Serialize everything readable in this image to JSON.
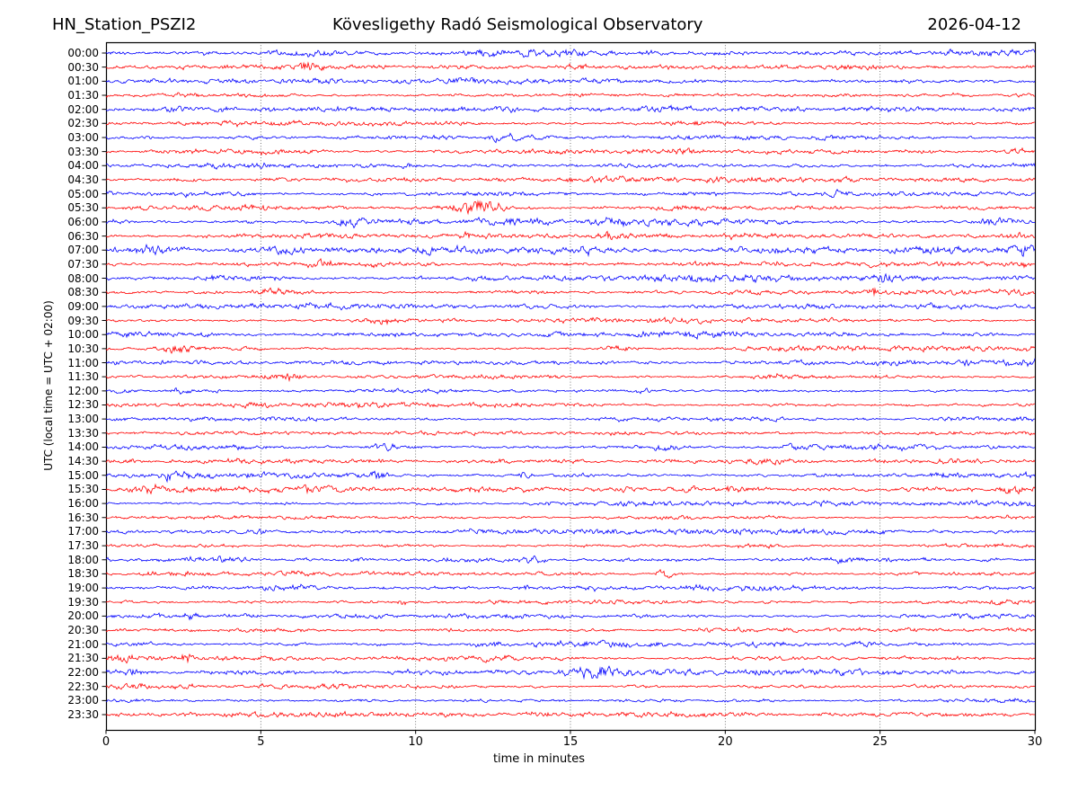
{
  "chart_data": {
    "type": "line",
    "station": "HN_Station_PSZI2",
    "title": "Kövesligethy Radó Seismological Observatory",
    "date": "2026-04-12",
    "xlabel": "time in minutes",
    "ylabel": "UTC (local time = UTC + 02:00)",
    "xlim": [
      0,
      30
    ],
    "x_ticks": [
      0,
      5,
      10,
      15,
      20,
      25,
      30
    ],
    "row_duration_minutes": 30,
    "grid": {
      "vertical_minutes": [
        5,
        10,
        15,
        20,
        25
      ],
      "style": "dotted",
      "color": "#555555"
    },
    "colors": {
      "blue": "#0000ff",
      "red": "#ff0000",
      "frame": "#000000"
    },
    "legend": "none",
    "rows": [
      {
        "label": "00:00",
        "color": "blue",
        "amp": 1.2,
        "events": []
      },
      {
        "label": "00:30",
        "color": "red",
        "amp": 1.05,
        "events": [
          {
            "t": 6.6,
            "w": 0.25,
            "amp": 2.2
          }
        ]
      },
      {
        "label": "01:00",
        "color": "blue",
        "amp": 1.0,
        "events": []
      },
      {
        "label": "01:30",
        "color": "red",
        "amp": 1.0,
        "events": []
      },
      {
        "label": "02:00",
        "color": "blue",
        "amp": 1.0,
        "events": [
          {
            "t": 3.8,
            "w": 0.2,
            "amp": 1.6
          }
        ]
      },
      {
        "label": "02:30",
        "color": "red",
        "amp": 0.95,
        "events": []
      },
      {
        "label": "03:00",
        "color": "blue",
        "amp": 0.95,
        "events": [
          {
            "t": 12.8,
            "w": 0.25,
            "amp": 2.2
          }
        ]
      },
      {
        "label": "03:30",
        "color": "red",
        "amp": 1.0,
        "events": [
          {
            "t": 29.3,
            "w": 0.4,
            "amp": 1.6
          }
        ]
      },
      {
        "label": "04:00",
        "color": "blue",
        "amp": 0.95,
        "events": [
          {
            "t": 9.8,
            "w": 0.15,
            "amp": 2.0
          }
        ]
      },
      {
        "label": "04:30",
        "color": "red",
        "amp": 0.95,
        "events": []
      },
      {
        "label": "05:00",
        "color": "blue",
        "amp": 1.0,
        "events": [
          {
            "t": 23.6,
            "w": 0.3,
            "amp": 2.1
          }
        ]
      },
      {
        "label": "05:30",
        "color": "red",
        "amp": 1.0,
        "events": [
          {
            "t": 12.0,
            "w": 0.45,
            "amp": 7.3
          }
        ]
      },
      {
        "label": "06:00",
        "color": "blue",
        "amp": 1.2,
        "events": [
          {
            "t": 7.9,
            "w": 0.35,
            "amp": 2.8
          },
          {
            "t": 12.6,
            "w": 0.8,
            "amp": 1.8
          },
          {
            "t": 28.8,
            "w": 0.5,
            "amp": 2.0
          }
        ]
      },
      {
        "label": "06:30",
        "color": "red",
        "amp": 1.05,
        "events": [
          {
            "t": 11.6,
            "w": 0.2,
            "amp": 2.5
          },
          {
            "t": 16.2,
            "w": 0.2,
            "amp": 2.1
          }
        ]
      },
      {
        "label": "07:00",
        "color": "blue",
        "amp": 1.15,
        "events": [
          {
            "t": 1.5,
            "w": 0.35,
            "amp": 3.1
          },
          {
            "t": 5.8,
            "w": 0.4,
            "amp": 2.1
          },
          {
            "t": 15.6,
            "w": 0.25,
            "amp": 2.1
          },
          {
            "t": 29.7,
            "w": 0.2,
            "amp": 2.4
          }
        ]
      },
      {
        "label": "07:30",
        "color": "red",
        "amp": 1.05,
        "events": [
          {
            "t": 7.0,
            "w": 0.25,
            "amp": 2.8
          },
          {
            "t": 29.4,
            "w": 0.3,
            "amp": 2.4
          }
        ]
      },
      {
        "label": "08:00",
        "color": "blue",
        "amp": 1.05,
        "events": [
          {
            "t": 3.5,
            "w": 0.2,
            "amp": 3.4
          },
          {
            "t": 25.1,
            "w": 0.25,
            "amp": 2.4
          }
        ]
      },
      {
        "label": "08:30",
        "color": "red",
        "amp": 1.05,
        "events": [
          {
            "t": 5.2,
            "w": 0.3,
            "amp": 3.1
          },
          {
            "t": 24.8,
            "w": 0.08,
            "amp": 4.5
          }
        ]
      },
      {
        "label": "09:00",
        "color": "blue",
        "amp": 0.9,
        "events": []
      },
      {
        "label": "09:30",
        "color": "red",
        "amp": 0.95,
        "events": [
          {
            "t": 9.0,
            "w": 0.25,
            "amp": 2.0
          }
        ]
      },
      {
        "label": "10:00",
        "color": "blue",
        "amp": 1.0,
        "events": [
          {
            "t": 0.6,
            "w": 0.4,
            "amp": 1.6
          }
        ]
      },
      {
        "label": "10:30",
        "color": "red",
        "amp": 1.0,
        "events": [
          {
            "t": 2.4,
            "w": 0.35,
            "amp": 2.7
          },
          {
            "t": 16.6,
            "w": 0.3,
            "amp": 2.5
          }
        ]
      },
      {
        "label": "11:00",
        "color": "blue",
        "amp": 0.95,
        "events": [
          {
            "t": 27.9,
            "w": 0.15,
            "amp": 2.4
          },
          {
            "t": 29.8,
            "w": 0.15,
            "amp": 2.5
          }
        ]
      },
      {
        "label": "11:30",
        "color": "red",
        "amp": 1.0,
        "events": [
          {
            "t": 5.8,
            "w": 0.25,
            "amp": 2.9
          },
          {
            "t": 21.5,
            "w": 0.4,
            "amp": 1.7
          }
        ]
      },
      {
        "label": "12:00",
        "color": "blue",
        "amp": 0.95,
        "events": [
          {
            "t": 2.4,
            "w": 0.2,
            "amp": 2.0
          },
          {
            "t": 17.3,
            "w": 0.2,
            "amp": 1.8
          }
        ]
      },
      {
        "label": "12:30",
        "color": "red",
        "amp": 0.9,
        "events": [
          {
            "t": 5.0,
            "w": 0.2,
            "amp": 2.0
          }
        ]
      },
      {
        "label": "13:00",
        "color": "blue",
        "amp": 0.85,
        "events": []
      },
      {
        "label": "13:30",
        "color": "red",
        "amp": 0.85,
        "events": []
      },
      {
        "label": "14:00",
        "color": "blue",
        "amp": 1.0,
        "events": [
          {
            "t": 9.0,
            "w": 0.25,
            "amp": 2.8
          },
          {
            "t": 18.1,
            "w": 0.25,
            "amp": 2.4
          }
        ]
      },
      {
        "label": "14:30",
        "color": "red",
        "amp": 1.0,
        "events": [
          {
            "t": 21.5,
            "w": 0.8,
            "amp": 1.8
          },
          {
            "t": 27.2,
            "w": 0.3,
            "amp": 2.0
          }
        ]
      },
      {
        "label": "15:00",
        "color": "blue",
        "amp": 1.05,
        "events": [
          {
            "t": 2.1,
            "w": 0.15,
            "amp": 3.1
          },
          {
            "t": 8.8,
            "w": 0.25,
            "amp": 2.7
          },
          {
            "t": 13.5,
            "w": 0.2,
            "amp": 2.4
          },
          {
            "t": 27.5,
            "w": 0.4,
            "amp": 1.8
          }
        ]
      },
      {
        "label": "15:30",
        "color": "red",
        "amp": 1.0,
        "events": [
          {
            "t": 1.5,
            "w": 0.4,
            "amp": 2.0
          },
          {
            "t": 6.8,
            "w": 0.3,
            "amp": 2.4
          },
          {
            "t": 20.2,
            "w": 0.3,
            "amp": 2.1
          },
          {
            "t": 29.3,
            "w": 0.3,
            "amp": 2.5
          }
        ]
      },
      {
        "label": "16:00",
        "color": "blue",
        "amp": 0.8,
        "events": []
      },
      {
        "label": "16:30",
        "color": "red",
        "amp": 0.8,
        "events": []
      },
      {
        "label": "17:00",
        "color": "blue",
        "amp": 0.85,
        "events": [
          {
            "t": 4.9,
            "w": 0.15,
            "amp": 2.4
          },
          {
            "t": 25.1,
            "w": 0.15,
            "amp": 2.1
          }
        ]
      },
      {
        "label": "17:30",
        "color": "red",
        "amp": 0.85,
        "events": []
      },
      {
        "label": "18:00",
        "color": "blue",
        "amp": 0.95,
        "events": [
          {
            "t": 13.8,
            "w": 0.25,
            "amp": 2.4
          },
          {
            "t": 28.6,
            "w": 0.15,
            "amp": 2.0
          }
        ]
      },
      {
        "label": "18:30",
        "color": "red",
        "amp": 0.9,
        "events": [
          {
            "t": 18.0,
            "w": 0.25,
            "amp": 2.8
          }
        ]
      },
      {
        "label": "19:00",
        "color": "blue",
        "amp": 0.95,
        "events": [
          {
            "t": 6.2,
            "w": 0.6,
            "amp": 1.8
          }
        ]
      },
      {
        "label": "19:30",
        "color": "red",
        "amp": 0.85,
        "events": [
          {
            "t": 9.6,
            "w": 0.1,
            "amp": 3.1
          }
        ]
      },
      {
        "label": "20:00",
        "color": "blue",
        "amp": 0.9,
        "events": [
          {
            "t": 2.8,
            "w": 0.2,
            "amp": 2.1
          }
        ]
      },
      {
        "label": "20:30",
        "color": "red",
        "amp": 0.85,
        "events": []
      },
      {
        "label": "21:00",
        "color": "blue",
        "amp": 0.95,
        "events": [
          {
            "t": 12.4,
            "w": 0.4,
            "amp": 2.4
          }
        ]
      },
      {
        "label": "21:30",
        "color": "red",
        "amp": 1.0,
        "events": [
          {
            "t": 0.5,
            "w": 0.4,
            "amp": 3.6
          },
          {
            "t": 2.6,
            "w": 0.25,
            "amp": 2.1
          }
        ]
      },
      {
        "label": "22:00",
        "color": "blue",
        "amp": 1.0,
        "events": [
          {
            "t": 0.8,
            "w": 0.4,
            "amp": 2.5
          },
          {
            "t": 15.8,
            "w": 0.35,
            "amp": 3.9
          }
        ]
      },
      {
        "label": "22:30",
        "color": "red",
        "amp": 0.9,
        "events": [
          {
            "t": 0.8,
            "w": 0.35,
            "amp": 2.5
          }
        ]
      },
      {
        "label": "23:00",
        "color": "blue",
        "amp": 0.8,
        "events": []
      },
      {
        "label": "23:30",
        "color": "red",
        "amp": 0.95,
        "events": [
          {
            "t": 14.0,
            "w": 0.2,
            "amp": 2.0
          },
          {
            "t": 23.2,
            "w": 0.2,
            "amp": 1.7
          }
        ]
      }
    ]
  }
}
